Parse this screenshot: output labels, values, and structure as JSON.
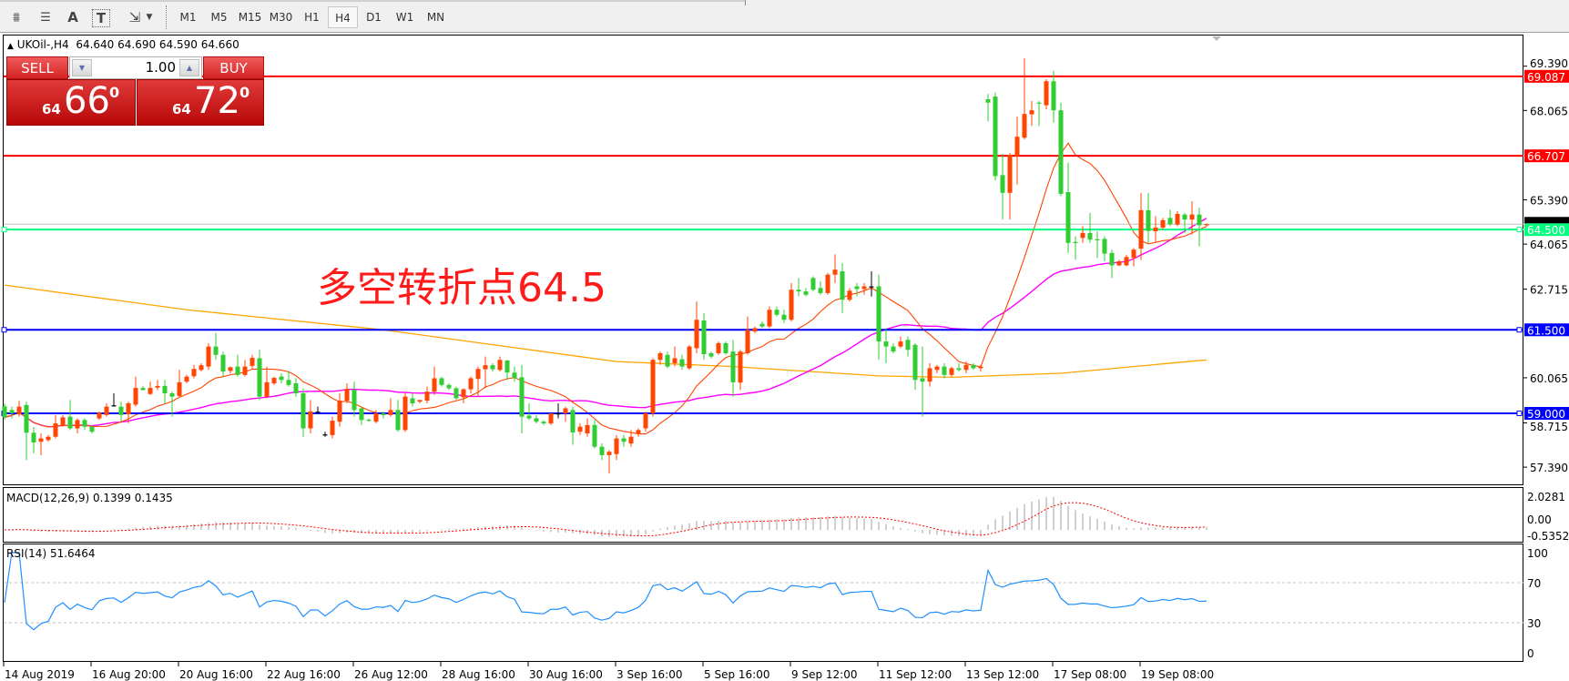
{
  "toolbar": {
    "tools": [
      {
        "name": "elliott-wave-icon",
        "glyph": "⩩"
      },
      {
        "name": "fibonacci-icon",
        "glyph": "☰"
      },
      {
        "name": "text-icon",
        "glyph": "A"
      },
      {
        "name": "text-label-icon",
        "glyph": "T"
      },
      {
        "name": "arrows-icon",
        "glyph": "⇲"
      }
    ],
    "timeframes": [
      "M1",
      "M5",
      "M15",
      "M30",
      "H1",
      "H4",
      "D1",
      "W1",
      "MN"
    ],
    "active_timeframe": "H4"
  },
  "chart_info": {
    "symbol": "UKOil-,H4",
    "ohlc": "64.640 64.690 64.590 64.660"
  },
  "trade_panel": {
    "sell_label": "SELL",
    "buy_label": "BUY",
    "lot": "1.00",
    "sell_price": {
      "prefix": "64",
      "big": "66",
      "sup": "0"
    },
    "buy_price": {
      "prefix": "64",
      "big": "72",
      "sup": "0"
    }
  },
  "annotation": "多空转折点64.5",
  "macd_label": "MACD(12,26,9) 0.1399 0.1435",
  "rsi_label": "RSI(14) 51.6464",
  "colors": {
    "bull": "#ff4500",
    "bear": "#32cd32",
    "doji": "#000000",
    "ma_fast": "#ff4500",
    "ma_mid": "#ff00ff",
    "ma_slow": "#ffa500",
    "rsi": "#1e90ff",
    "macd_hist": "#c0c0c0",
    "macd_signal": "#ff0000"
  },
  "chart_data": {
    "type": "candlestick",
    "symbol": "UKOil",
    "timeframe": "H4",
    "ylim": [
      56.9,
      70.3
    ],
    "price_ticks": [
      "69.390",
      "68.065",
      "65.390",
      "64.065",
      "62.715",
      "60.065",
      "58.715",
      "57.390"
    ],
    "date_labels": [
      "14 Aug 2019",
      "16 Aug 20:00",
      "20 Aug 16:00",
      "22 Aug 16:00",
      "26 Aug 12:00",
      "28 Aug 16:00",
      "30 Aug 16:00",
      "3 Sep 16:00",
      "5 Sep 16:00",
      "9 Sep 12:00",
      "11 Sep 12:00",
      "13 Sep 12:00",
      "17 Sep 08:00",
      "19 Sep 08:00"
    ],
    "date_label_bar_index": [
      0,
      12,
      24,
      36,
      48,
      60,
      72,
      84,
      96,
      108,
      120,
      132,
      144,
      156
    ],
    "bid_price": 64.66,
    "bid_label": "64.660",
    "levels": [
      {
        "price": 69.087,
        "label": "69.087",
        "color": "#ff0000"
      },
      {
        "price": 66.707,
        "label": "66.707",
        "color": "#ff0000"
      },
      {
        "price": 64.5,
        "label": "64.500",
        "color": "#00ff7f"
      },
      {
        "price": 61.5,
        "label": "61.500",
        "color": "#0000ff"
      },
      {
        "price": 59.0,
        "label": "59.000",
        "color": "#0000ff"
      }
    ],
    "slow_ma_points": [
      [
        0,
        62.84
      ],
      [
        25,
        62.1
      ],
      [
        52,
        61.5
      ],
      [
        84,
        60.55
      ],
      [
        100,
        60.4
      ],
      [
        120,
        60.12
      ],
      [
        130,
        60.08
      ],
      [
        145,
        60.2
      ],
      [
        165,
        60.6
      ]
    ],
    "ohlc": [
      [
        59.21,
        59.3,
        58.8,
        58.88
      ],
      [
        59.1,
        59.2,
        58.85,
        59.0
      ],
      [
        58.97,
        59.38,
        58.9,
        59.2
      ],
      [
        59.25,
        59.35,
        57.6,
        58.42
      ],
      [
        58.42,
        58.6,
        57.8,
        58.13
      ],
      [
        58.15,
        58.4,
        57.75,
        58.25
      ],
      [
        58.2,
        58.35,
        58.15,
        58.3
      ],
      [
        58.3,
        58.95,
        58.25,
        58.7
      ],
      [
        58.65,
        58.95,
        58.6,
        58.88
      ],
      [
        58.9,
        59.4,
        58.5,
        58.55
      ],
      [
        58.55,
        58.85,
        58.4,
        58.8
      ],
      [
        58.8,
        58.85,
        58.5,
        58.6
      ],
      [
        58.6,
        58.65,
        58.4,
        58.45
      ],
      [
        58.85,
        59.05,
        58.8,
        59.02
      ],
      [
        58.95,
        59.3,
        58.9,
        59.2
      ],
      [
        59.24,
        59.6,
        59.2,
        59.24
      ],
      [
        59.2,
        59.35,
        58.75,
        58.95
      ],
      [
        58.97,
        59.35,
        58.7,
        59.3
      ],
      [
        59.26,
        60.1,
        59.2,
        59.76
      ],
      [
        59.76,
        59.82,
        59.68,
        59.7
      ],
      [
        59.58,
        59.95,
        59.55,
        59.76
      ],
      [
        59.77,
        60.0,
        59.7,
        59.82
      ],
      [
        59.82,
        60.0,
        59.3,
        59.6
      ],
      [
        59.6,
        59.65,
        58.9,
        59.5
      ],
      [
        59.52,
        60.3,
        59.5,
        59.93
      ],
      [
        59.95,
        60.15,
        59.9,
        60.1
      ],
      [
        60.11,
        60.45,
        60.05,
        60.33
      ],
      [
        60.3,
        60.5,
        60.25,
        60.44
      ],
      [
        60.4,
        61.1,
        60.3,
        61.0
      ],
      [
        61.0,
        61.4,
        60.6,
        60.75
      ],
      [
        60.75,
        60.85,
        60.1,
        60.25
      ],
      [
        60.27,
        60.4,
        60.2,
        60.38
      ],
      [
        60.4,
        60.75,
        60.1,
        60.15
      ],
      [
        60.15,
        60.6,
        60.1,
        60.4
      ],
      [
        60.42,
        60.75,
        60.35,
        60.66
      ],
      [
        60.65,
        60.9,
        59.4,
        59.5
      ],
      [
        59.5,
        60.4,
        59.45,
        59.93
      ],
      [
        59.9,
        60.1,
        59.85,
        60.06
      ],
      [
        60.1,
        60.2,
        59.9,
        60.0
      ],
      [
        60.0,
        60.25,
        59.8,
        59.85
      ],
      [
        59.9,
        60.05,
        59.5,
        59.6
      ],
      [
        59.6,
        59.75,
        58.3,
        58.55
      ],
      [
        58.55,
        59.4,
        58.4,
        59.06
      ],
      [
        59.05,
        59.2,
        59.0,
        59.05
      ],
      [
        58.37,
        58.45,
        58.3,
        58.37
      ],
      [
        58.35,
        58.9,
        58.25,
        58.78
      ],
      [
        58.75,
        59.6,
        58.6,
        59.38
      ],
      [
        59.38,
        59.9,
        59.3,
        59.73
      ],
      [
        59.7,
        59.95,
        58.9,
        59.1
      ],
      [
        59.15,
        59.2,
        58.65,
        58.8
      ],
      [
        58.81,
        58.85,
        58.75,
        58.8
      ],
      [
        58.75,
        59.1,
        58.7,
        59.0
      ],
      [
        59.0,
        59.05,
        58.85,
        58.95
      ],
      [
        58.95,
        59.45,
        58.9,
        59.1
      ],
      [
        59.1,
        59.4,
        58.45,
        58.5
      ],
      [
        58.5,
        59.6,
        58.45,
        59.5
      ],
      [
        59.45,
        59.6,
        59.2,
        59.3
      ],
      [
        59.35,
        59.4,
        59.3,
        59.4
      ],
      [
        59.38,
        59.8,
        59.3,
        59.65
      ],
      [
        59.65,
        60.4,
        59.55,
        60.05
      ],
      [
        60.05,
        60.1,
        59.8,
        59.85
      ],
      [
        59.85,
        59.9,
        59.7,
        59.75
      ],
      [
        59.75,
        59.8,
        59.4,
        59.45
      ],
      [
        59.48,
        59.75,
        59.3,
        59.72
      ],
      [
        59.72,
        60.1,
        59.6,
        60.05
      ],
      [
        60.03,
        60.4,
        59.5,
        60.33
      ],
      [
        60.32,
        60.7,
        59.75,
        60.44
      ],
      [
        60.44,
        60.5,
        60.25,
        60.32
      ],
      [
        60.3,
        60.7,
        60.25,
        60.6
      ],
      [
        60.58,
        60.6,
        60.0,
        60.22
      ],
      [
        60.22,
        60.4,
        59.95,
        60.05
      ],
      [
        60.08,
        60.45,
        58.4,
        58.9
      ],
      [
        58.93,
        59.3,
        58.8,
        58.85
      ],
      [
        58.85,
        58.95,
        58.7,
        58.75
      ],
      [
        58.75,
        58.8,
        58.65,
        58.7
      ],
      [
        58.7,
        59.0,
        58.65,
        59.0
      ],
      [
        59.0,
        59.3,
        58.85,
        59.0
      ],
      [
        59.0,
        59.2,
        58.75,
        59.15
      ],
      [
        59.1,
        59.2,
        58.06,
        58.43
      ],
      [
        58.45,
        58.7,
        58.35,
        58.6
      ],
      [
        58.4,
        58.85,
        58.3,
        58.65
      ],
      [
        58.65,
        58.8,
        57.95,
        58.0
      ],
      [
        58.0,
        58.1,
        57.6,
        57.75
      ],
      [
        57.75,
        57.9,
        57.2,
        57.85
      ],
      [
        57.78,
        58.35,
        57.6,
        58.25
      ],
      [
        58.25,
        58.35,
        58.0,
        58.15
      ],
      [
        58.1,
        58.5,
        58.0,
        58.3
      ],
      [
        58.4,
        58.55,
        58.3,
        58.5
      ],
      [
        58.55,
        59.05,
        58.45,
        59.0
      ],
      [
        59.0,
        60.65,
        58.9,
        60.6
      ],
      [
        60.6,
        60.85,
        60.45,
        60.8
      ],
      [
        60.75,
        60.85,
        60.35,
        60.4
      ],
      [
        60.5,
        61.0,
        60.4,
        60.65
      ],
      [
        60.62,
        60.75,
        60.3,
        60.4
      ],
      [
        60.35,
        61.05,
        60.3,
        61.0
      ],
      [
        60.95,
        62.35,
        60.8,
        61.8
      ],
      [
        61.78,
        62.0,
        60.6,
        60.77
      ],
      [
        60.8,
        60.85,
        60.65,
        60.7
      ],
      [
        60.8,
        61.15,
        60.75,
        61.1
      ],
      [
        61.1,
        61.15,
        60.75,
        60.8
      ],
      [
        60.85,
        61.2,
        59.5,
        59.93
      ],
      [
        59.92,
        60.9,
        59.7,
        60.85
      ],
      [
        60.8,
        61.9,
        60.75,
        61.5
      ],
      [
        61.45,
        61.6,
        61.4,
        61.55
      ],
      [
        61.68,
        61.75,
        61.55,
        61.6
      ],
      [
        61.6,
        62.2,
        61.55,
        62.1
      ],
      [
        62.1,
        62.2,
        61.9,
        61.95
      ],
      [
        61.95,
        62.1,
        61.7,
        61.8
      ],
      [
        61.8,
        62.9,
        61.75,
        62.7
      ],
      [
        62.7,
        63.05,
        62.5,
        62.65
      ],
      [
        62.65,
        62.75,
        62.5,
        62.55
      ],
      [
        63.05,
        63.1,
        62.65,
        62.7
      ],
      [
        62.75,
        62.95,
        62.55,
        62.6
      ],
      [
        62.6,
        63.2,
        62.55,
        63.15
      ],
      [
        63.15,
        63.76,
        62.9,
        63.3
      ],
      [
        63.25,
        63.5,
        62.0,
        62.4
      ],
      [
        62.4,
        62.75,
        62.35,
        62.67
      ],
      [
        62.8,
        62.9,
        62.5,
        62.72
      ],
      [
        62.72,
        62.9,
        62.55,
        62.8
      ],
      [
        62.8,
        63.25,
        62.5,
        62.8
      ],
      [
        62.8,
        63.15,
        60.6,
        61.15
      ],
      [
        61.15,
        61.55,
        60.5,
        61.0
      ],
      [
        61.0,
        61.1,
        60.8,
        60.85
      ],
      [
        61.0,
        61.3,
        60.95,
        61.15
      ],
      [
        61.2,
        61.3,
        60.7,
        60.9
      ],
      [
        61.05,
        61.1,
        59.7,
        60.0
      ],
      [
        60.05,
        61.0,
        58.9,
        59.95
      ],
      [
        59.95,
        60.5,
        59.8,
        60.35
      ],
      [
        60.3,
        60.45,
        60.2,
        60.4
      ],
      [
        60.4,
        60.5,
        60.05,
        60.15
      ],
      [
        60.15,
        60.4,
        60.1,
        60.35
      ],
      [
        60.35,
        60.5,
        60.25,
        60.3
      ],
      [
        60.3,
        60.55,
        60.2,
        60.45
      ],
      [
        60.45,
        60.5,
        60.3,
        60.35
      ],
      [
        60.35,
        60.45,
        60.25,
        60.4
      ],
      [
        68.4,
        68.56,
        67.74,
        68.3
      ],
      [
        68.48,
        68.6,
        65.97,
        66.1
      ],
      [
        66.13,
        66.77,
        64.8,
        65.6
      ],
      [
        65.6,
        66.8,
        64.8,
        66.74
      ],
      [
        66.7,
        67.88,
        65.85,
        67.28
      ],
      [
        67.25,
        69.63,
        67.2,
        67.96
      ],
      [
        67.95,
        68.35,
        67.6,
        68.07
      ],
      [
        68.3,
        68.35,
        67.6,
        68.29
      ],
      [
        68.22,
        69.0,
        68.1,
        68.94
      ],
      [
        68.94,
        69.25,
        67.7,
        68.07
      ],
      [
        68.07,
        68.3,
        65.5,
        65.57
      ],
      [
        65.62,
        66.5,
        63.8,
        64.1
      ],
      [
        64.13,
        64.3,
        63.6,
        64.12
      ],
      [
        64.25,
        64.6,
        64.1,
        64.4
      ],
      [
        64.4,
        65.0,
        64.1,
        64.2
      ],
      [
        64.21,
        64.45,
        63.65,
        64.2
      ],
      [
        64.22,
        64.3,
        63.55,
        63.78
      ],
      [
        63.8,
        63.9,
        63.05,
        63.43
      ],
      [
        63.43,
        63.6,
        63.4,
        63.55
      ],
      [
        63.43,
        63.75,
        63.4,
        63.68
      ],
      [
        63.65,
        63.95,
        63.4,
        63.9
      ],
      [
        63.93,
        65.6,
        63.6,
        65.08
      ],
      [
        65.08,
        65.6,
        64.1,
        64.46
      ],
      [
        64.45,
        64.9,
        64.1,
        64.56
      ],
      [
        64.56,
        64.85,
        64.5,
        64.78
      ],
      [
        64.85,
        65.1,
        64.6,
        64.66
      ],
      [
        64.65,
        65.05,
        64.6,
        64.97
      ],
      [
        64.95,
        65.0,
        64.4,
        64.8
      ],
      [
        64.8,
        65.35,
        64.35,
        64.95
      ],
      [
        64.95,
        65.15,
        64.0,
        64.63
      ],
      [
        64.64,
        64.69,
        64.59,
        64.66
      ]
    ],
    "macd": {
      "params": "12,26,9",
      "ticks": [
        "2.0281",
        "0.00",
        "-0.5352"
      ]
    },
    "rsi": {
      "period": 14,
      "levels": [
        70,
        30
      ],
      "ticks": [
        "100",
        "70",
        "30",
        "0"
      ]
    }
  }
}
